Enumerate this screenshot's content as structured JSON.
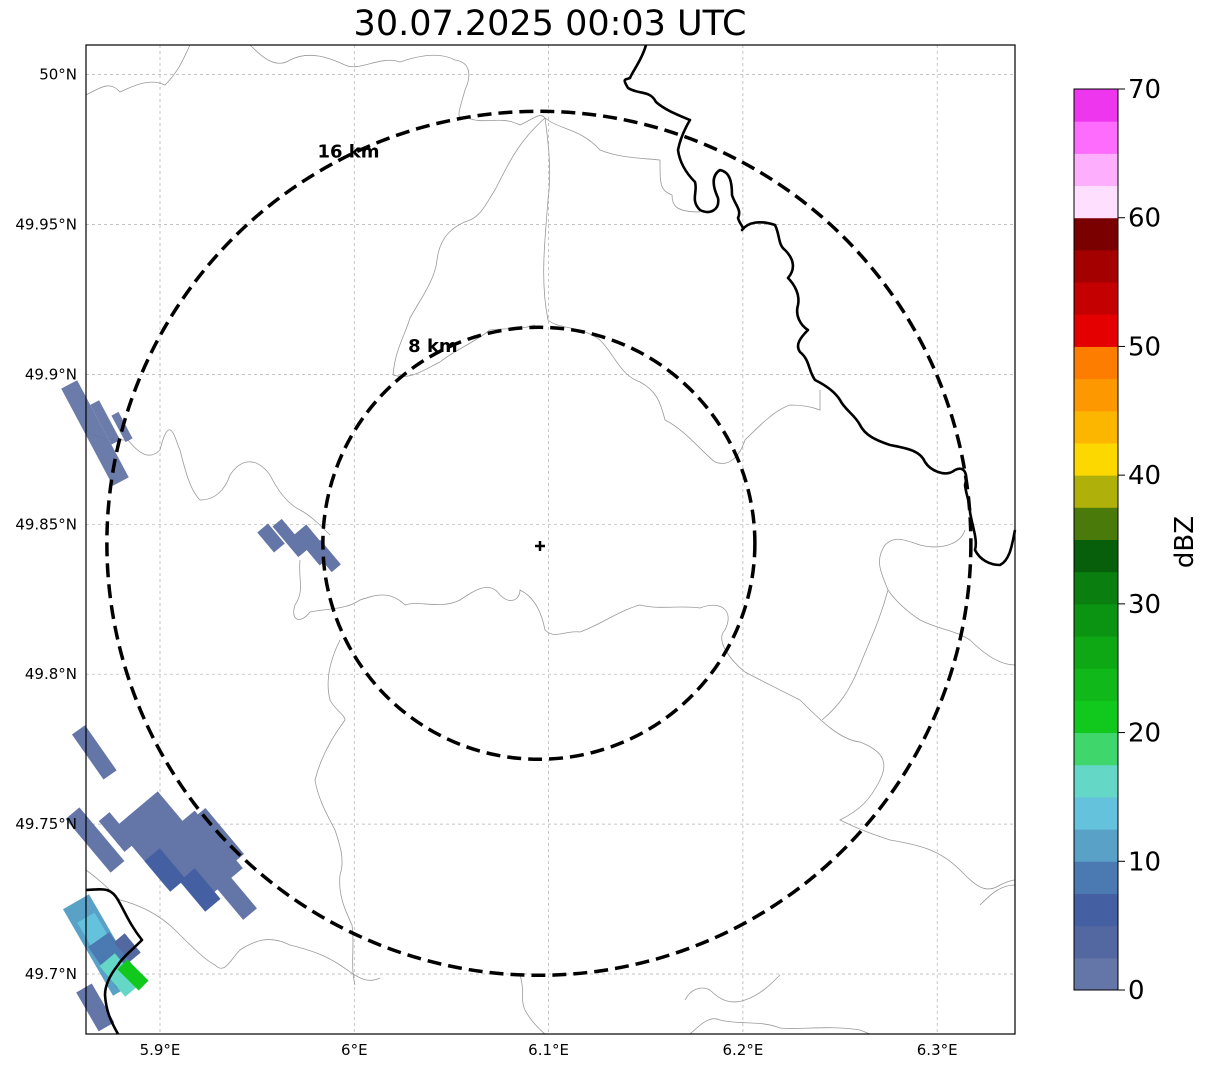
{
  "title": "30.07.2025 00:03 UTC",
  "map": {
    "lon_range": [
      5.861,
      6.34
    ],
    "lat_range": [
      49.68,
      50.01
    ],
    "lon_ticks": [
      {
        "value": 5.9,
        "label": "5.9°E"
      },
      {
        "value": 6.0,
        "label": "6°E"
      },
      {
        "value": 6.1,
        "label": "6.1°E"
      },
      {
        "value": 6.2,
        "label": "6.2°E"
      },
      {
        "value": 6.3,
        "label": "6.3°E"
      }
    ],
    "lat_ticks": [
      {
        "value": 50.0,
        "label": "50°N"
      },
      {
        "value": 49.95,
        "label": "49.95°N"
      },
      {
        "value": 49.9,
        "label": "49.9°N"
      },
      {
        "value": 49.85,
        "label": "49.85°N"
      },
      {
        "value": 49.8,
        "label": "49.8°N"
      },
      {
        "value": 49.75,
        "label": "49.75°N"
      },
      {
        "value": 49.7,
        "label": "49.7°N"
      }
    ],
    "grid": true,
    "radar_site": {
      "lon": 6.095,
      "lat": 49.843
    },
    "rings": [
      {
        "radius_km": 8,
        "label": "8 km"
      },
      {
        "radius_km": 16,
        "label": "16 km"
      }
    ]
  },
  "colorbar": {
    "label": "dBZ",
    "min": 0,
    "max": 70,
    "step": 2.5,
    "ticks": [
      {
        "value": 0,
        "label": "0"
      },
      {
        "value": 10,
        "label": "10"
      },
      {
        "value": 20,
        "label": "20"
      },
      {
        "value": 30,
        "label": "30"
      },
      {
        "value": 40,
        "label": "40"
      },
      {
        "value": 50,
        "label": "50"
      },
      {
        "value": 60,
        "label": "60"
      },
      {
        "value": 70,
        "label": "70"
      }
    ],
    "colors": [
      "#6475a7",
      "#5368a0",
      "#4460a3",
      "#4b79b1",
      "#5aa1c8",
      "#65c2dc",
      "#64d7c6",
      "#3fd76b",
      "#11c91c",
      "#10b819",
      "#0ea814",
      "#0b9412",
      "#0a7f10",
      "#075e0b",
      "#4a7a0a",
      "#afb10a",
      "#fdd800",
      "#fdb600",
      "#fd9800",
      "#fd7d00",
      "#e40000",
      "#c50000",
      "#a40000",
      "#7a0000",
      "#fee0fe",
      "#fdaffd",
      "#fd6cfd",
      "#ee36ee"
    ]
  }
}
